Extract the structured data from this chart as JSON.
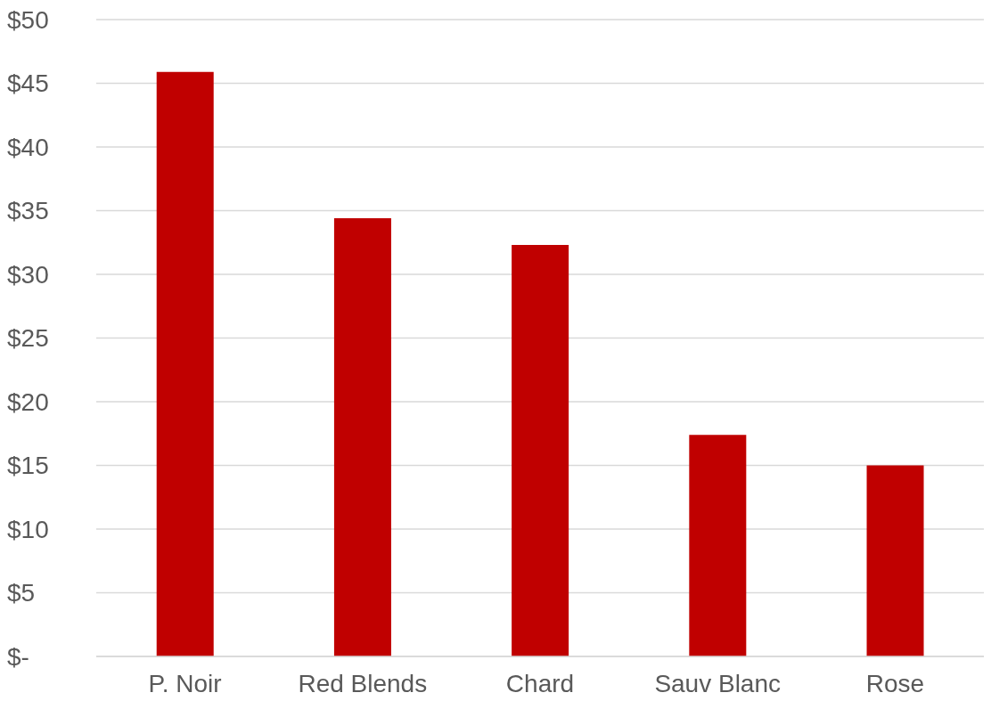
{
  "chart_data": {
    "type": "bar",
    "categories": [
      "P. Noir",
      "Red Blends",
      "Chard",
      "Sauv Blanc",
      "Rose"
    ],
    "values": [
      45.9,
      34.4,
      32.3,
      17.4,
      15.0
    ],
    "color": "#c00000",
    "ylim": [
      0,
      50
    ],
    "yticks": [
      {
        "value": 0,
        "label": "$-"
      },
      {
        "value": 5,
        "label": "$5"
      },
      {
        "value": 10,
        "label": "$10"
      },
      {
        "value": 15,
        "label": "$15"
      },
      {
        "value": 20,
        "label": "$20"
      },
      {
        "value": 25,
        "label": "$25"
      },
      {
        "value": 30,
        "label": "$30"
      },
      {
        "value": 35,
        "label": "$35"
      },
      {
        "value": 40,
        "label": "$40"
      },
      {
        "value": 45,
        "label": "$45"
      },
      {
        "value": 50,
        "label": "$50"
      }
    ],
    "grid": "y"
  }
}
